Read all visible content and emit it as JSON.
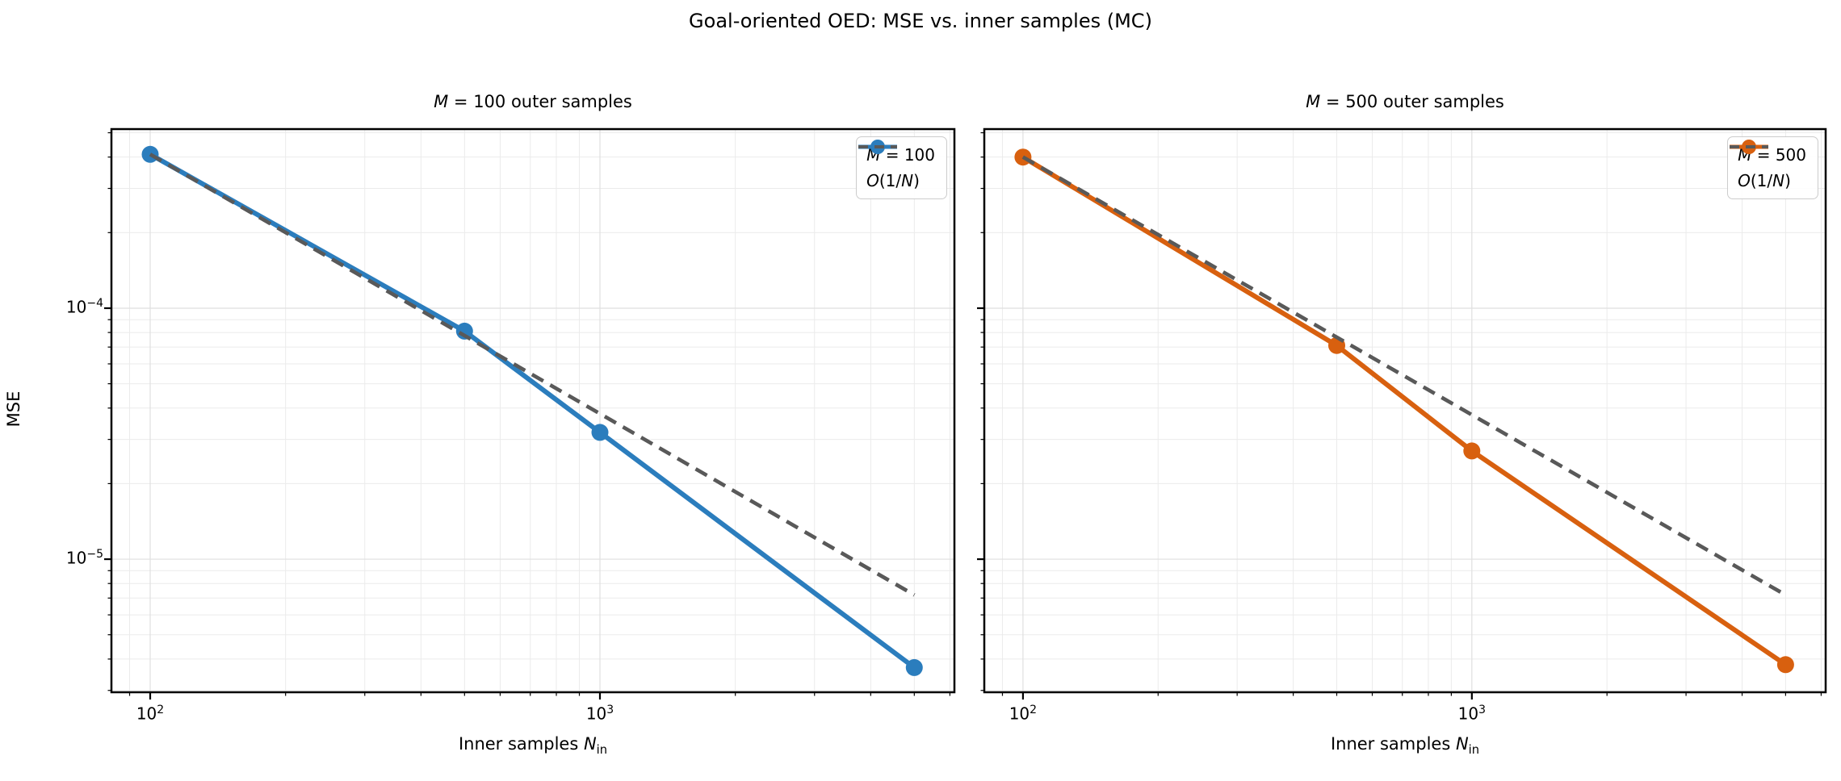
{
  "title": "Goal-oriented OED: MSE vs. inner samples (MC)",
  "chart_data": {
    "type": "line",
    "title": "Goal-oriented OED: MSE vs. inner samples (MC)",
    "xlabel": "Inner samples N_in",
    "ylabel": "MSE",
    "x_scale": "log",
    "y_scale": "log",
    "xlim": [
      82,
      6140
    ],
    "ylim": [
      2.95e-06,
      0.000517
    ],
    "x_ticks_major": [
      100,
      1000
    ],
    "x_ticks_minor": [
      90,
      200,
      300,
      400,
      500,
      600,
      700,
      800,
      900,
      2000,
      3000,
      4000,
      5000,
      6000
    ],
    "y_ticks_major": [
      0.0001,
      1e-05
    ],
    "y_ticks_minor": [
      3e-06,
      4e-06,
      5e-06,
      6e-06,
      7e-06,
      8e-06,
      9e-06,
      2e-05,
      3e-05,
      4e-05,
      5e-05,
      6e-05,
      7e-05,
      8e-05,
      9e-05,
      0.0002,
      0.0003,
      0.0004,
      0.0005
    ],
    "grid": true,
    "legend_position": "upper right",
    "subplots": [
      {
        "id": "m100",
        "title": "M = 100 outer samples",
        "show_y_tick_labels": true,
        "series": [
          {
            "name": "M = 100",
            "style": "solid-marker",
            "color": "#2b7dbd",
            "x": [
              100,
              500,
              1000,
              5000
            ],
            "y": [
              0.00041,
              8.1e-05,
              3.2e-05,
              3.7e-06
            ]
          },
          {
            "name": "O(1/N)",
            "style": "dashed",
            "color": "#595959",
            "x": [
              100,
              5000
            ],
            "y": [
              0.00041,
              7.2e-06
            ]
          }
        ]
      },
      {
        "id": "m500",
        "title": "M = 500 outer samples",
        "show_y_tick_labels": false,
        "series": [
          {
            "name": "M = 500",
            "style": "solid-marker",
            "color": "#d8600f",
            "x": [
              100,
              500,
              1000,
              5000
            ],
            "y": [
              0.0004,
              7.1e-05,
              2.7e-05,
              3.8e-06
            ]
          },
          {
            "name": "O(1/N)",
            "style": "dashed",
            "color": "#595959",
            "x": [
              100,
              5000
            ],
            "y": [
              0.0004,
              7.2e-06
            ]
          }
        ]
      }
    ],
    "colors": {
      "spine": "#000000",
      "tick": "#000000",
      "grid_major": "#dfdfdf",
      "grid_minor": "#ebebeb",
      "reference": "#595959",
      "legend_border": "#cccccc"
    }
  }
}
